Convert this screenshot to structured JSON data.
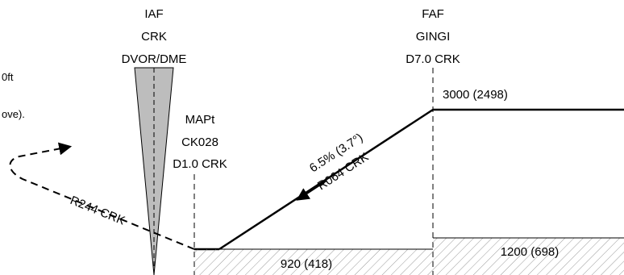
{
  "left_notes": {
    "line1": "0ft",
    "line2": "ove)."
  },
  "fixes": {
    "iaf": {
      "role": "IAF",
      "name": "CRK",
      "type": "DVOR/DME"
    },
    "mapt": {
      "role": "MAPt",
      "name": "CK028",
      "dist": "D1.0 CRK"
    },
    "faf": {
      "role": "FAF",
      "name": "GINGI",
      "dist": "D7.0 CRK"
    }
  },
  "altitudes": {
    "faf_alt": "3000 (2498)",
    "minimum_left": "920 (418)",
    "minimum_right": "1200 (698)"
  },
  "approach": {
    "gradient": "6.5% (3.7°)",
    "radial_inbound": "R064 CRK",
    "radial_missed": "R244 CRK"
  },
  "colors": {
    "stroke": "#000000",
    "cone_fill": "#bdbdbd",
    "hatch": "#9a9a9a"
  }
}
